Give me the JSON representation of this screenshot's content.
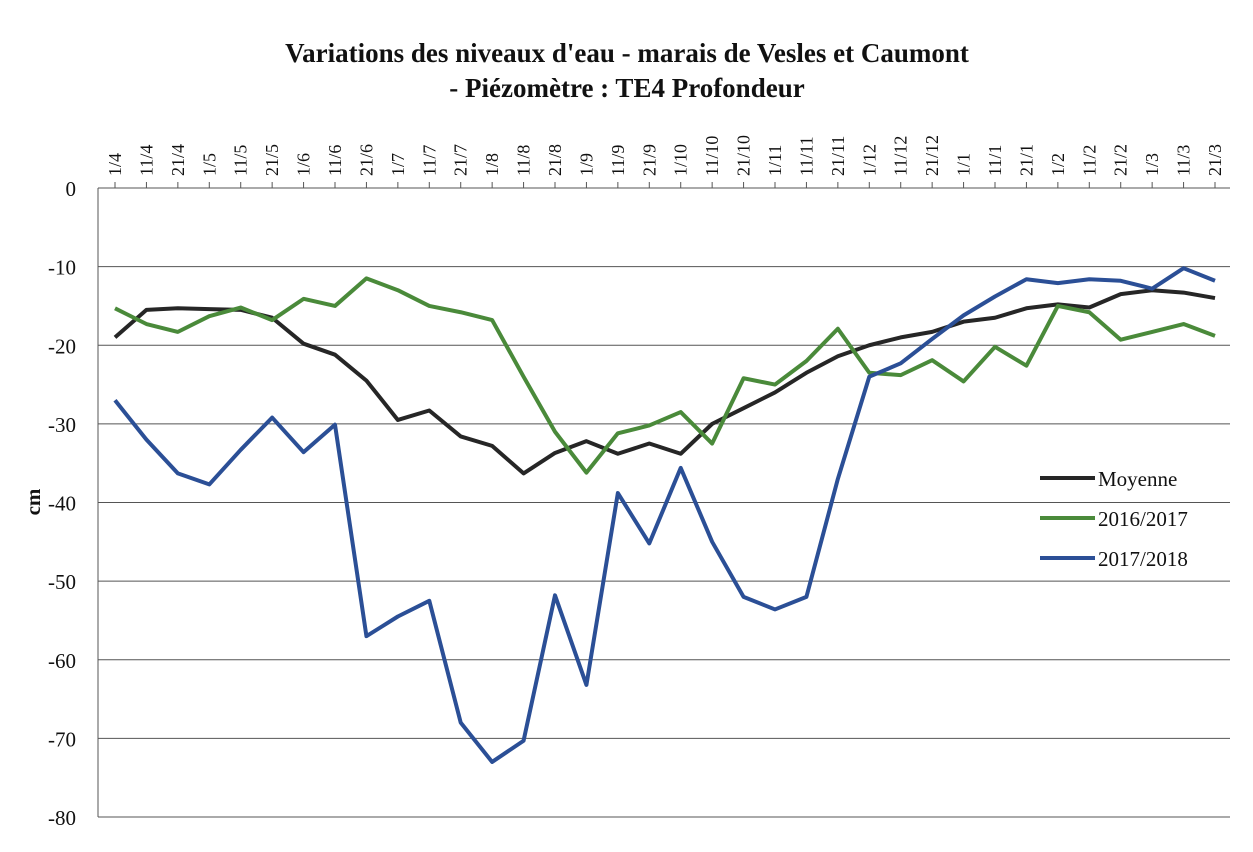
{
  "chart_data": {
    "type": "line",
    "title": "Variations des niveaux d'eau - marais de Vesles et Caumont",
    "subtitle": "- Piézomètre : TE4 Profondeur",
    "y_label": "cm",
    "categories": [
      "1/4",
      "11/4",
      "21/4",
      "1/5",
      "11/5",
      "21/5",
      "1/6",
      "11/6",
      "21/6",
      "1/7",
      "11/7",
      "21/7",
      "1/8",
      "11/8",
      "21/8",
      "1/9",
      "11/9",
      "21/9",
      "1/10",
      "11/10",
      "21/10",
      "1/11",
      "11/11",
      "21/11",
      "1/12",
      "11/12",
      "21/12",
      "1/1",
      "11/1",
      "21/1",
      "1/2",
      "11/2",
      "21/2",
      "1/3",
      "11/3",
      "21/3"
    ],
    "series": [
      {
        "name": "Moyenne",
        "color": "#262626",
        "values": [
          -19,
          -15.5,
          -15.3,
          -15.4,
          -15.5,
          -16.5,
          -19.8,
          -21.2,
          -24.5,
          -29.5,
          -28.3,
          -31.6,
          -32.8,
          -36.3,
          -33.7,
          -32.2,
          -33.8,
          -32.5,
          -33.8,
          -30,
          -28,
          -26,
          -23.5,
          -21.4,
          -20,
          -19,
          -18.3,
          -17,
          -16.5,
          -15.3,
          -14.8,
          -15.2,
          -13.5,
          -13,
          -13.3,
          -14
        ]
      },
      {
        "name": "2016/2017",
        "color": "#4a8a3a",
        "values": [
          -15.3,
          -17.3,
          -18.3,
          -16.3,
          -15.2,
          -16.8,
          -14.1,
          -15,
          -11.5,
          -13,
          -15,
          -15.8,
          -16.8,
          -24,
          -31,
          -36.2,
          -31.2,
          -30.2,
          -28.5,
          -32.5,
          -24.2,
          -25,
          -22,
          -17.9,
          -23.5,
          -23.8,
          -21.9,
          -24.6,
          -20.2,
          -22.6,
          -15,
          -15.8,
          -19.3,
          -18.3,
          -17.3,
          -18.8
        ]
      },
      {
        "name": "2017/2018",
        "color": "#2b4f96",
        "values": [
          -27,
          -32,
          -36.3,
          -37.7,
          -33.3,
          -29.2,
          -33.6,
          -30.1,
          -57,
          -54.5,
          -52.5,
          -68,
          -73,
          -70.3,
          -51.8,
          -63.2,
          -38.8,
          -45.2,
          -35.6,
          -45,
          -52,
          -53.6,
          -52,
          -37,
          -24,
          -22.3,
          -19.2,
          -16.2,
          -13.8,
          -11.6,
          -12.1,
          -11.6,
          -11.8,
          -12.8,
          -10.2,
          -11.8
        ]
      }
    ],
    "ylim": [
      -80,
      0
    ],
    "yticks": [
      0,
      -10,
      -20,
      -30,
      -40,
      -50,
      -60,
      -70,
      -80
    ],
    "grid": true,
    "legend": "right"
  }
}
